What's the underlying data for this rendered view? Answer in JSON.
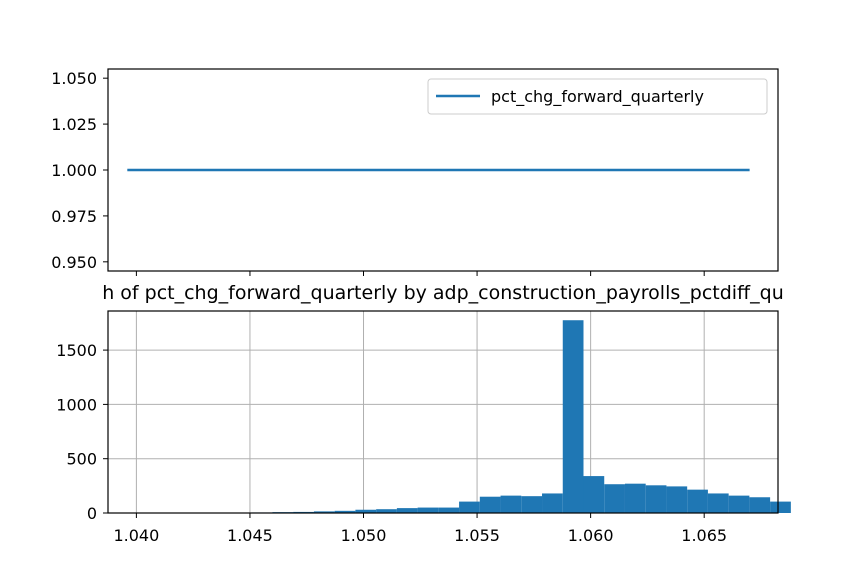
{
  "chart_data": [
    {
      "type": "line",
      "title": "",
      "xlabel": "",
      "ylabel": "",
      "legend_position": "top-right",
      "grid": false,
      "xlim": [
        1.03875,
        1.06825
      ],
      "ylim": [
        0.945,
        1.055
      ],
      "yticks": [
        0.95,
        0.975,
        1.0,
        1.025,
        1.05
      ],
      "ytick_labels": [
        "0.950",
        "0.975",
        "1.000",
        "1.025",
        "1.050"
      ],
      "xtick_labels_shown": false,
      "series": [
        {
          "name": "pct_chg_forward_quarterly",
          "color": "#1f77b4",
          "x": [
            1.0396,
            1.067
          ],
          "y": [
            1.0,
            1.0
          ]
        }
      ]
    },
    {
      "type": "bar",
      "title": "h of pct_chg_forward_quarterly by adp_construction_payrolls_pctdiff_qu",
      "xlabel": "",
      "ylabel": "",
      "grid": true,
      "color": "#1f77b4",
      "xlim": [
        1.03875,
        1.06825
      ],
      "ylim": [
        0,
        1860
      ],
      "xticks": [
        1.04,
        1.045,
        1.05,
        1.055,
        1.06,
        1.065
      ],
      "xtick_labels": [
        "1.040",
        "1.045",
        "1.050",
        "1.055",
        "1.060",
        "1.065"
      ],
      "yticks": [
        0,
        500,
        1000,
        1500
      ],
      "ytick_labels": [
        "0",
        "500",
        "1000",
        "1500"
      ],
      "bin_start": 1.0396,
      "bin_width": 0.000913,
      "values": [
        2,
        1,
        1,
        3,
        2,
        2,
        5,
        8,
        10,
        15,
        20,
        30,
        35,
        45,
        50,
        50,
        105,
        150,
        160,
        155,
        180,
        1775,
        340,
        265,
        270,
        255,
        245,
        215,
        180,
        160,
        145,
        105
      ]
    }
  ]
}
